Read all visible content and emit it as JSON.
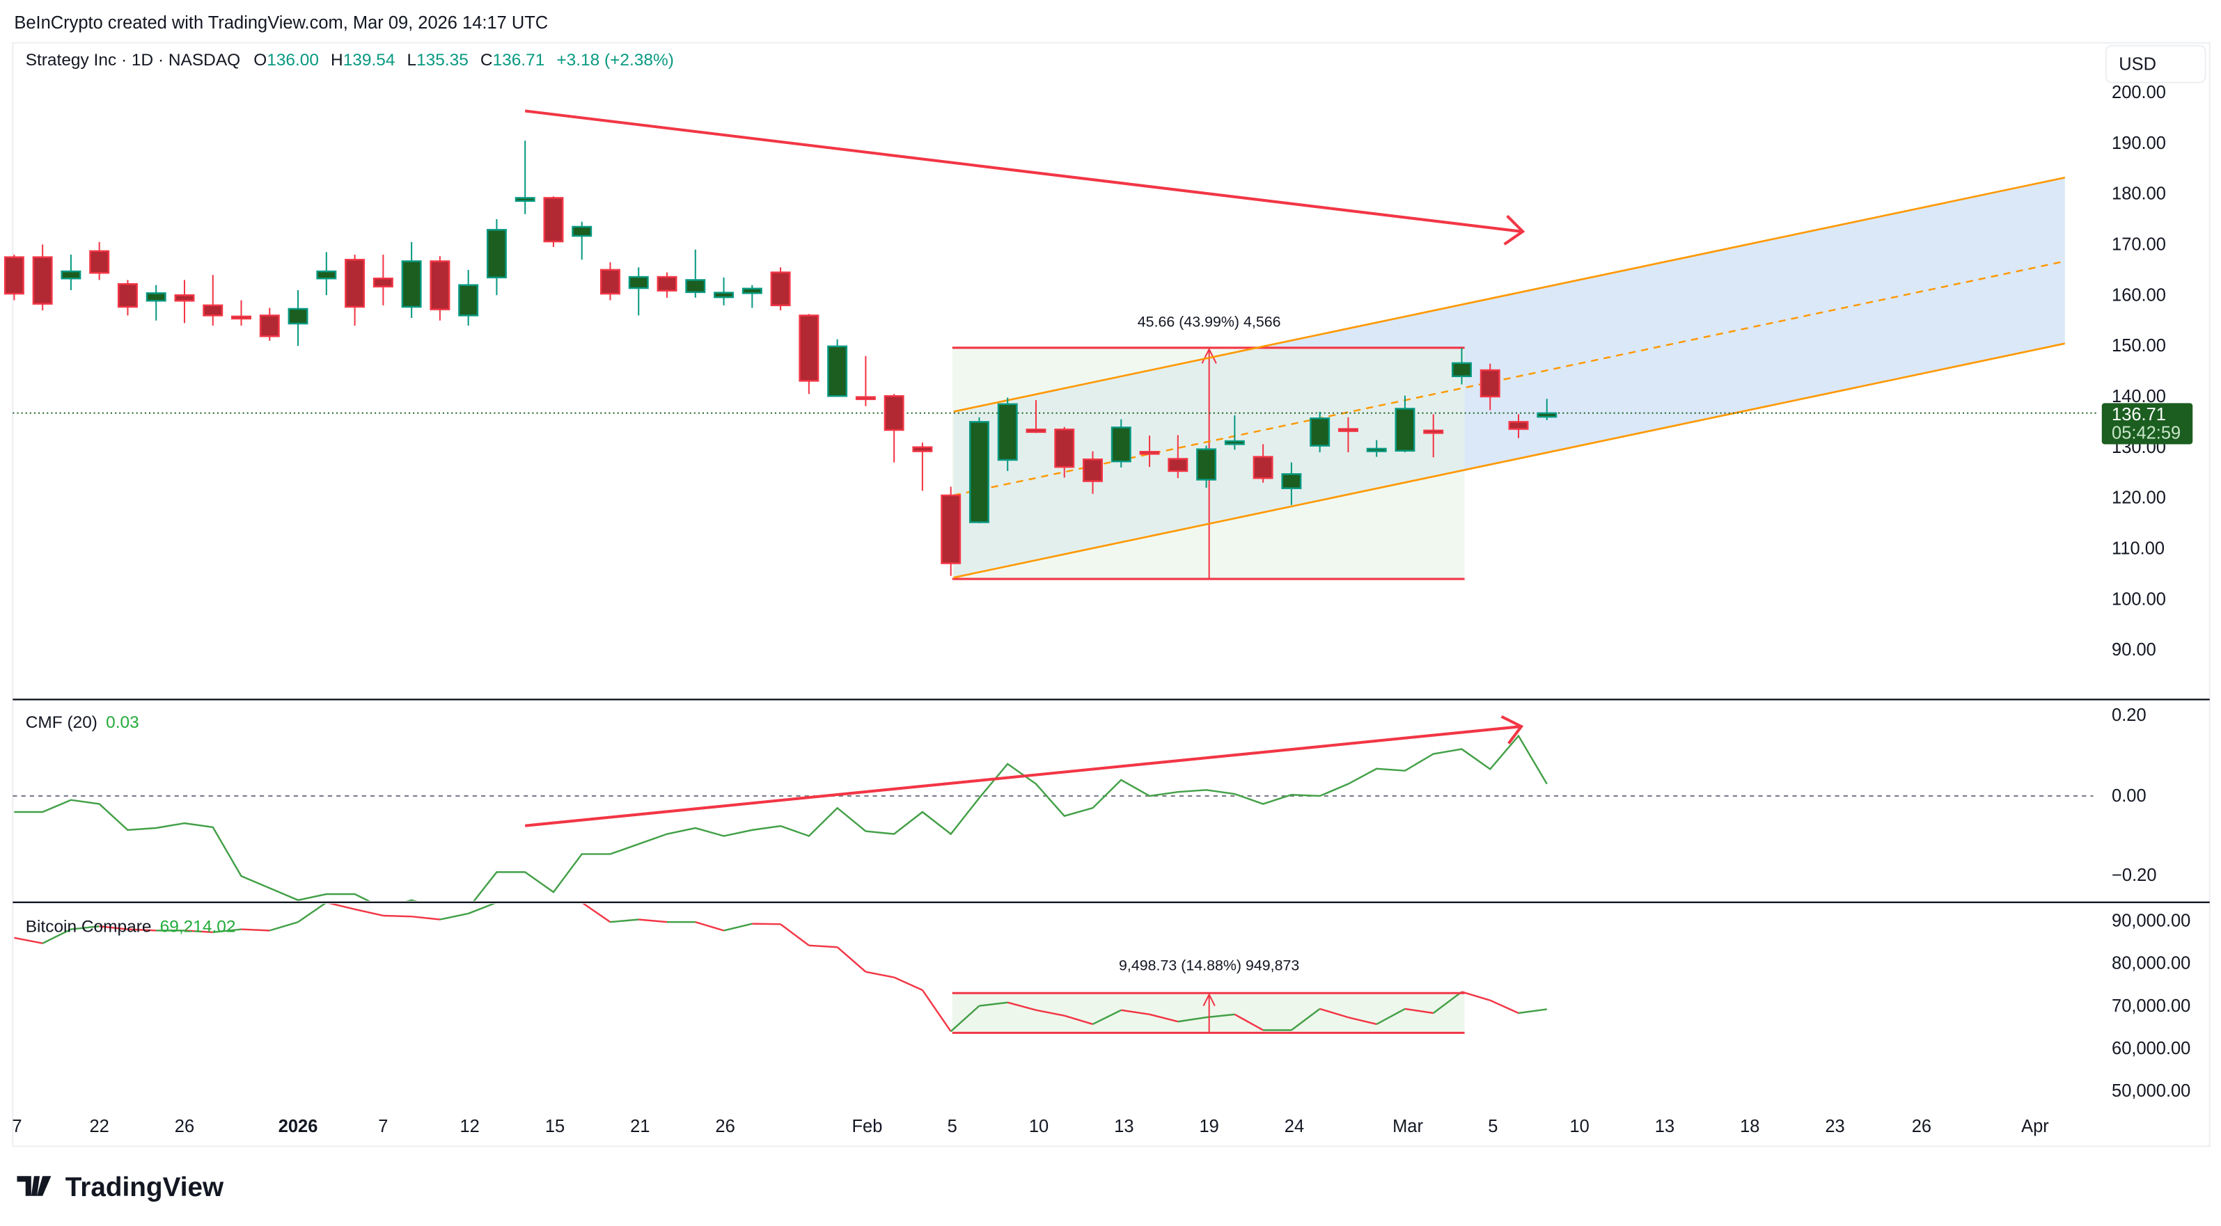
{
  "watermark": "BeInCrypto created with TradingView.com, Mar 09, 2026 14:17 UTC",
  "brand": "TradingView",
  "colors": {
    "up_body": "#1b5e20",
    "up_border": "#089981",
    "down_body": "#b22833",
    "down_border": "#f23645",
    "drawing_red": "#f23645",
    "channel": "#ff9800",
    "channel_fill": "#dbe8f8",
    "measure_fill": "#eef7ec",
    "cmf_line": "#43a047",
    "last_price_bg": "#1b5e20"
  },
  "legend": {
    "symbol": "Strategy Inc · 1D · NASDAQ",
    "o_label": "O",
    "o": "136.00",
    "h_label": "H",
    "h": "139.54",
    "l_label": "L",
    "l": "135.35",
    "c_label": "C",
    "c": "136.71",
    "change": "+3.18 (+2.38%)"
  },
  "currency_button": "USD",
  "price_axis": [
    "200.00",
    "190.00",
    "180.00",
    "170.00",
    "160.00",
    "150.00",
    "140.00",
    "130.00",
    "120.00",
    "110.00",
    "100.00",
    "90.00"
  ],
  "last_price": {
    "value": "136.71",
    "countdown": "05:42:59"
  },
  "measure_price": "45.66 (43.99%) 4,566",
  "cmf": {
    "label": "CMF (20)",
    "value": "0.03",
    "axis": [
      "0.20",
      "0.00",
      "−0.20"
    ]
  },
  "btc": {
    "label": "Bitcoin Compare",
    "value": "69,214.02",
    "axis": [
      "90,000.00",
      "80,000.00",
      "70,000.00",
      "60,000.00",
      "50,000.00"
    ],
    "measure": "9,498.73 (14.88%) 949,873"
  },
  "time_axis": [
    "7",
    "22",
    "26",
    "2026",
    "7",
    "12",
    "15",
    "21",
    "26",
    "Feb",
    "5",
    "10",
    "13",
    "19",
    "24",
    "Mar",
    "5",
    "10",
    "13",
    "18",
    "23",
    "26",
    "Apr"
  ],
  "chart_data": {
    "type": "candlestick",
    "ohlc": [
      [
        167.5,
        168,
        159,
        160.3
      ],
      [
        167.5,
        170,
        157,
        158.3
      ],
      [
        163.3,
        168,
        161,
        164.7
      ],
      [
        168.7,
        170.5,
        163,
        164.4
      ],
      [
        162.2,
        163,
        156,
        157.7
      ],
      [
        158.9,
        162,
        155,
        160.4
      ],
      [
        160,
        163,
        154.5,
        158.9
      ],
      [
        158,
        164,
        154,
        156
      ],
      [
        155.8,
        159,
        154,
        155.7
      ],
      [
        156,
        157.5,
        151,
        151.9
      ],
      [
        154.4,
        161,
        150,
        157.3
      ],
      [
        163.3,
        168.5,
        160,
        164.7
      ],
      [
        167,
        168,
        154,
        157.7
      ],
      [
        163.3,
        168,
        158,
        161.7
      ],
      [
        157.7,
        170.5,
        155.5,
        166.7
      ],
      [
        166.7,
        167.7,
        155,
        157.2
      ],
      [
        156,
        165,
        154,
        162
      ],
      [
        163.5,
        175,
        160,
        172.9
      ],
      [
        178.6,
        190.5,
        176,
        179.2
      ],
      [
        179.2,
        179.5,
        169.5,
        170.6
      ],
      [
        171.7,
        174.5,
        167,
        173.5
      ],
      [
        165,
        166.5,
        159,
        160.3
      ],
      [
        161.4,
        165.5,
        156,
        163.6
      ],
      [
        163.6,
        164.5,
        159.5,
        160.9
      ],
      [
        160.6,
        169,
        159.5,
        163
      ],
      [
        159.6,
        163.5,
        158,
        160.5
      ],
      [
        160.4,
        162,
        157.5,
        161.3
      ],
      [
        164.5,
        165.5,
        157,
        158
      ],
      [
        156,
        156.3,
        140.5,
        143.1
      ],
      [
        140.1,
        151.3,
        140,
        149.9
      ],
      [
        139.9,
        148,
        138.1,
        139.8
      ],
      [
        140.1,
        140.5,
        127,
        133.4
      ],
      [
        130,
        130.9,
        121.4,
        129.2
      ],
      [
        120.5,
        122.2,
        104.6,
        107.1
      ],
      [
        115.2,
        135.9,
        115,
        135
      ],
      [
        127.5,
        139.8,
        125.3,
        138.5
      ],
      [
        133.5,
        139.3,
        132.8,
        133
      ],
      [
        133.5,
        134,
        124,
        126.1
      ],
      [
        127.6,
        129.2,
        120.8,
        123.3
      ],
      [
        127.2,
        135.5,
        126,
        133.9
      ],
      [
        129.1,
        132.3,
        126.1,
        128.8
      ],
      [
        127.7,
        132.4,
        123.9,
        125.3
      ],
      [
        123.6,
        130.3,
        122,
        129.6
      ],
      [
        130.6,
        136.3,
        129.5,
        131.2
      ],
      [
        128.1,
        130.6,
        123,
        123.9
      ],
      [
        121.9,
        127,
        118.6,
        124.7
      ],
      [
        130.3,
        137,
        129,
        135.7
      ],
      [
        133.6,
        135.9,
        129,
        133.2
      ],
      [
        129.2,
        131.4,
        128.1,
        129.7
      ],
      [
        129.3,
        140.2,
        129,
        137.6
      ],
      [
        133.3,
        136.5,
        128,
        132.8
      ],
      [
        144,
        149.6,
        142.4,
        146.6
      ],
      [
        145.2,
        146.5,
        137.3,
        140
      ],
      [
        135,
        136.5,
        131.8,
        133.6
      ],
      [
        136,
        139.54,
        135.35,
        136.71
      ]
    ],
    "price_range": [
      90,
      200
    ],
    "cmf_values": [
      -0.04,
      -0.04,
      -0.01,
      -0.02,
      -0.085,
      -0.08,
      -0.068,
      -0.078,
      -0.2,
      -0.23,
      -0.26,
      -0.245,
      -0.245,
      -0.28,
      -0.26,
      -0.28,
      -0.28,
      -0.19,
      -0.19,
      -0.24,
      -0.145,
      -0.145,
      -0.12,
      -0.095,
      -0.08,
      -0.1,
      -0.085,
      -0.075,
      -0.1,
      -0.03,
      -0.088,
      -0.095,
      -0.04,
      -0.095,
      -0.005,
      0.08,
      0.03,
      -0.05,
      -0.03,
      0.04,
      0,
      0.01,
      0.015,
      0.005,
      -0.02,
      0.003,
      0,
      0.03,
      0.068,
      0.063,
      0.105,
      0.117,
      0.067,
      0.15,
      0.03
    ],
    "btc_values": [
      86000,
      84700,
      88000,
      88700,
      88000,
      87700,
      87700,
      87300,
      88000,
      87700,
      89700,
      94300,
      92700,
      91200,
      91000,
      90300,
      91700,
      94300,
      95500,
      95000,
      94300,
      89700,
      90300,
      89700,
      89700,
      87700,
      89300,
      89200,
      84200,
      83800,
      78000,
      76700,
      73700,
      64000,
      70000,
      70800,
      69000,
      67700,
      65700,
      69000,
      68000,
      66300,
      67300,
      68000,
      64300,
      64300,
      69300,
      67300,
      65700,
      69300,
      68300,
      73300,
      71300,
      68300,
      69214
    ]
  }
}
